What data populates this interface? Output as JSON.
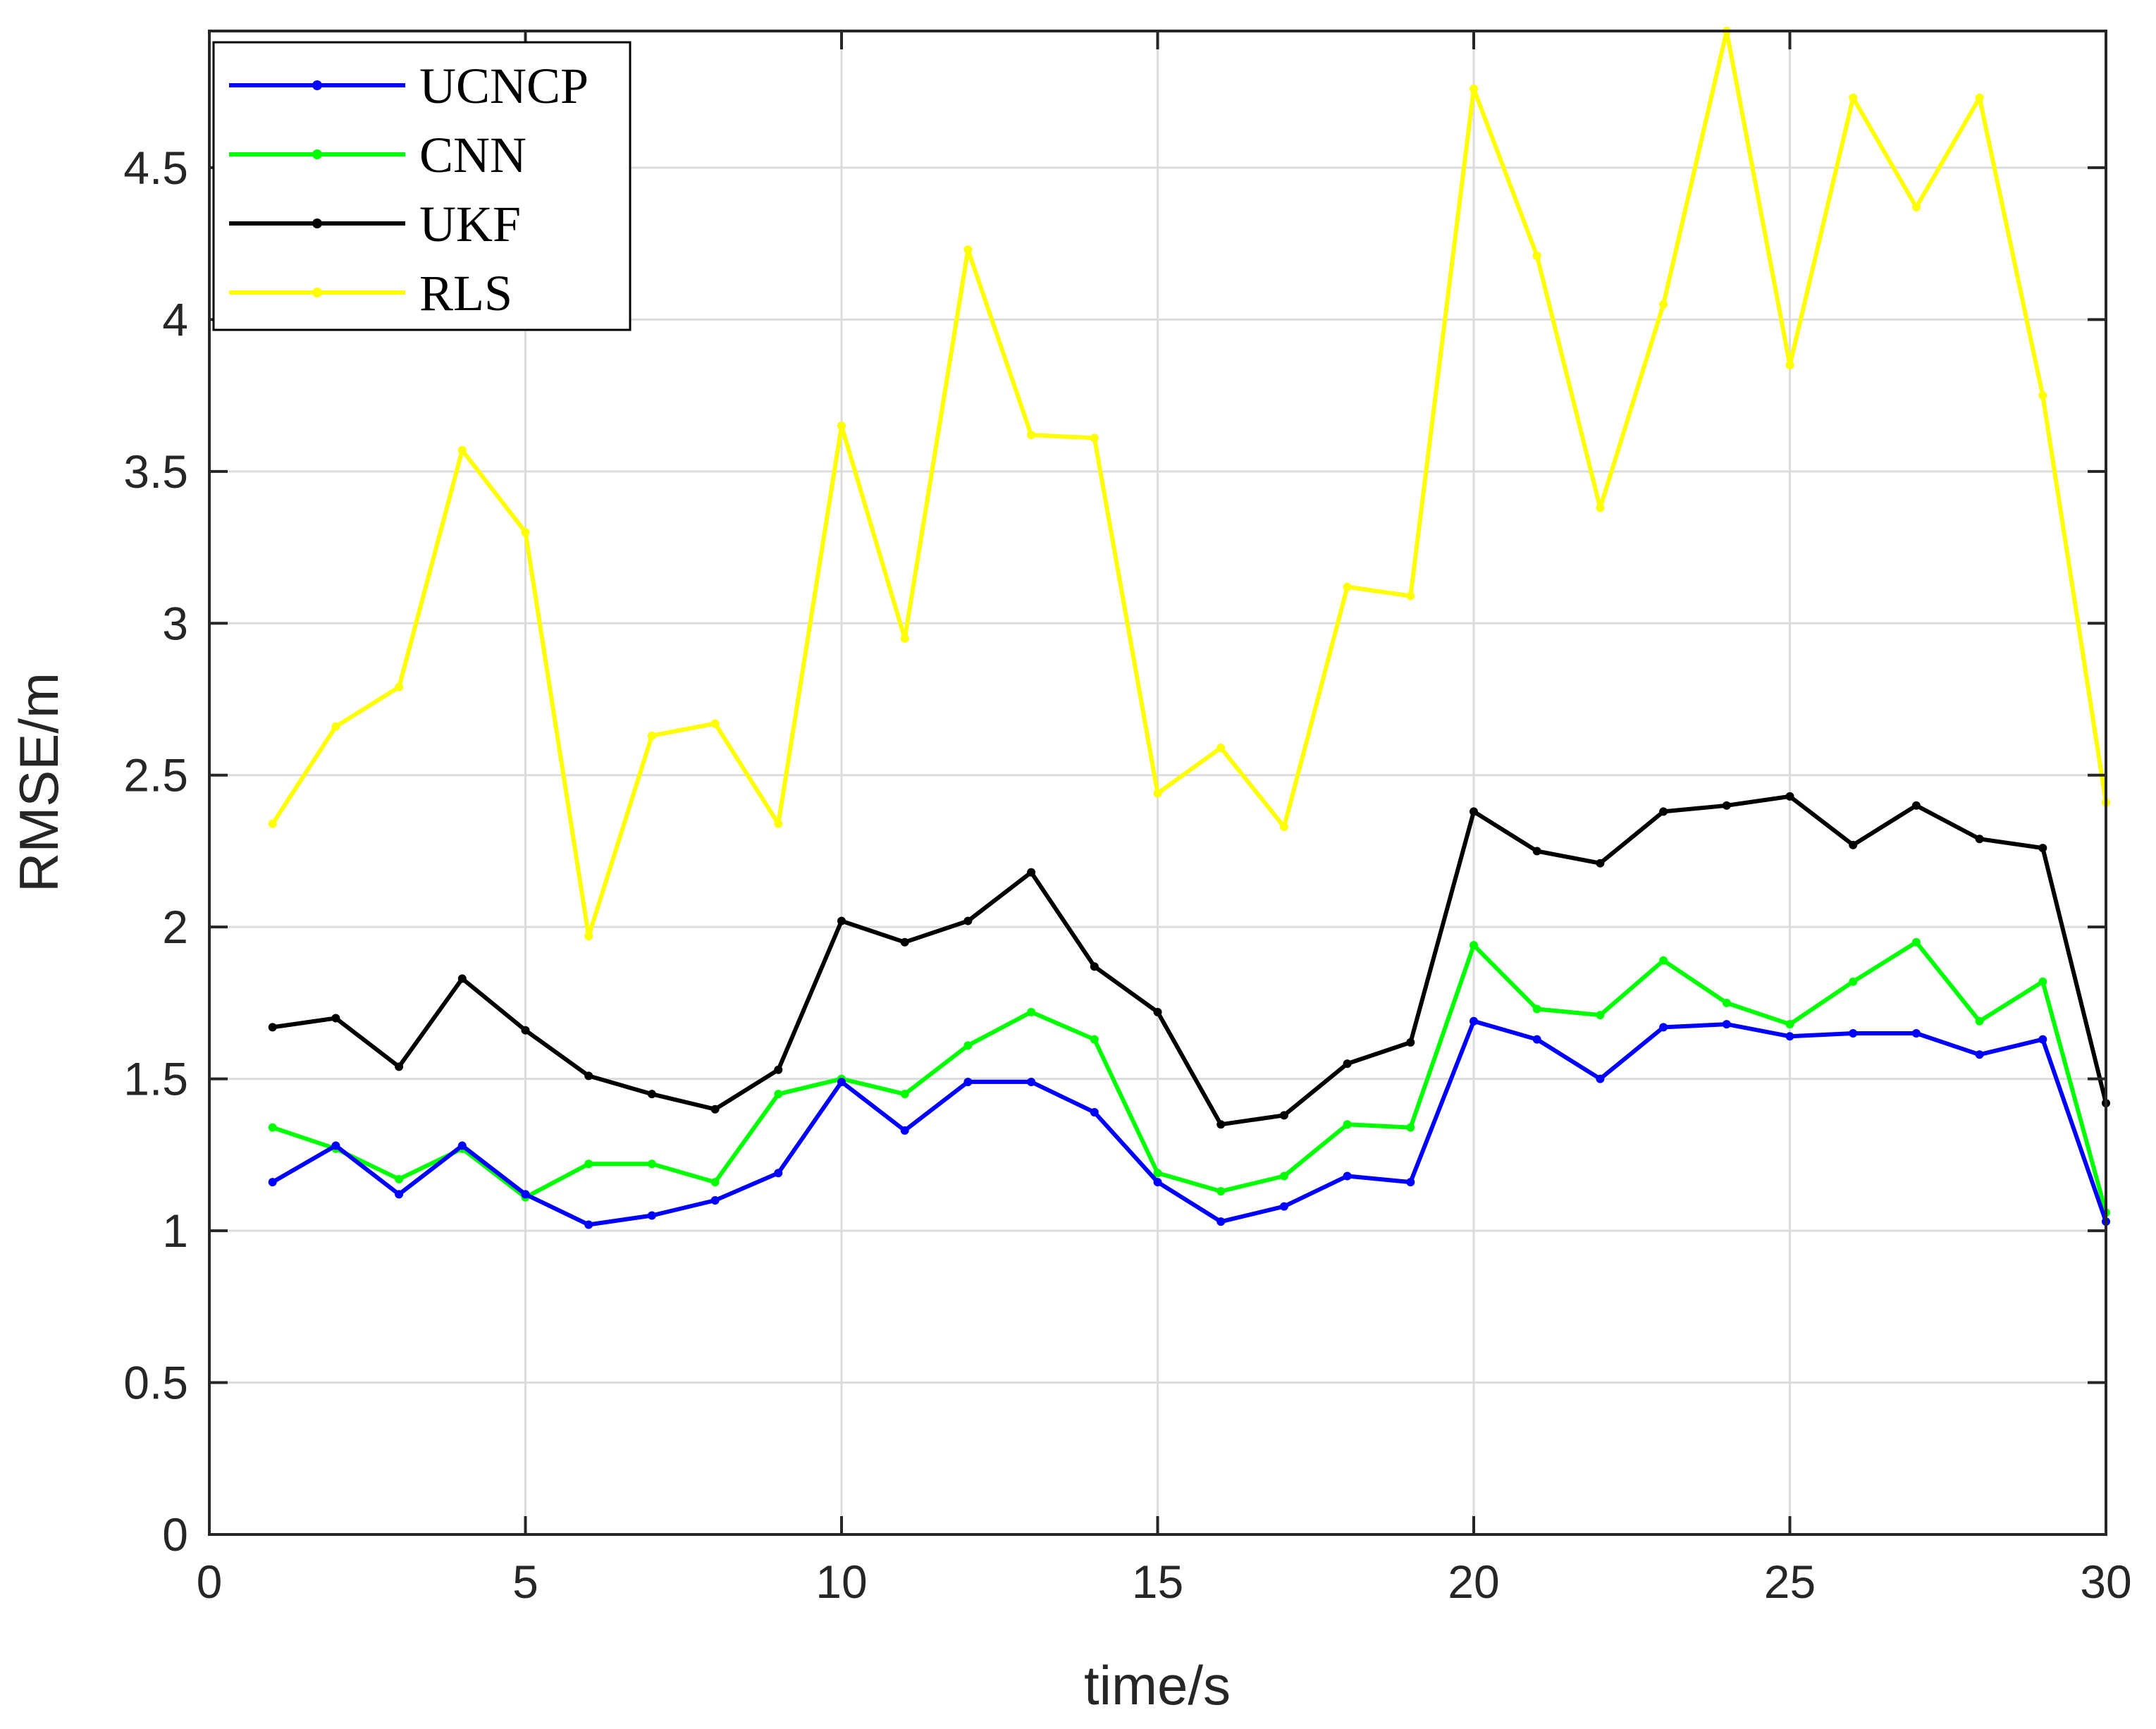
{
  "chart_data": {
    "type": "line",
    "title": "",
    "xlabel": "time/s",
    "ylabel": "RMSE/m",
    "xlim": [
      0,
      30
    ],
    "ylim": [
      0,
      4.95
    ],
    "xticks": [
      0,
      5,
      10,
      15,
      20,
      25,
      30
    ],
    "yticks": [
      0,
      0.5,
      1,
      1.5,
      2,
      2.5,
      3,
      3.5,
      4,
      4.5
    ],
    "grid": true,
    "legend_position": "top-left",
    "x": [
      1,
      2,
      3,
      4,
      5,
      6,
      7,
      8,
      9,
      10,
      11,
      12,
      13,
      14,
      15,
      16,
      17,
      18,
      19,
      20,
      21,
      22,
      23,
      24,
      25,
      26,
      27,
      28,
      29,
      30
    ],
    "series": [
      {
        "name": "UCNCP",
        "color": "#0000ff",
        "values": [
          1.16,
          1.28,
          1.12,
          1.28,
          1.12,
          1.02,
          1.05,
          1.1,
          1.19,
          1.49,
          1.33,
          1.49,
          1.49,
          1.39,
          1.16,
          1.03,
          1.08,
          1.18,
          1.16,
          1.69,
          1.63,
          1.5,
          1.67,
          1.68,
          1.64,
          1.65,
          1.65,
          1.58,
          1.63,
          1.03
        ]
      },
      {
        "name": "CNN",
        "color": "#00ff00",
        "values": [
          1.34,
          1.27,
          1.17,
          1.27,
          1.11,
          1.22,
          1.22,
          1.16,
          1.45,
          1.5,
          1.45,
          1.61,
          1.72,
          1.63,
          1.19,
          1.13,
          1.18,
          1.35,
          1.34,
          1.94,
          1.73,
          1.71,
          1.89,
          1.75,
          1.68,
          1.82,
          1.95,
          1.69,
          1.82,
          1.06
        ]
      },
      {
        "name": "UKF",
        "color": "#000000",
        "values": [
          1.67,
          1.7,
          1.54,
          1.83,
          1.66,
          1.51,
          1.45,
          1.4,
          1.53,
          2.02,
          1.95,
          2.02,
          2.18,
          1.87,
          1.72,
          1.35,
          1.38,
          1.55,
          1.62,
          2.38,
          2.25,
          2.21,
          2.38,
          2.4,
          2.43,
          2.27,
          2.4,
          2.29,
          2.26,
          1.42
        ]
      },
      {
        "name": "RLS",
        "color": "#ffff00",
        "values": [
          2.34,
          2.66,
          2.79,
          3.57,
          3.3,
          1.97,
          2.63,
          2.67,
          2.34,
          3.65,
          2.95,
          4.23,
          3.62,
          3.61,
          2.44,
          2.59,
          2.33,
          3.12,
          3.09,
          4.76,
          4.21,
          3.38,
          4.05,
          4.95,
          3.85,
          4.73,
          4.37,
          4.73,
          3.75,
          2.41
        ]
      }
    ]
  }
}
